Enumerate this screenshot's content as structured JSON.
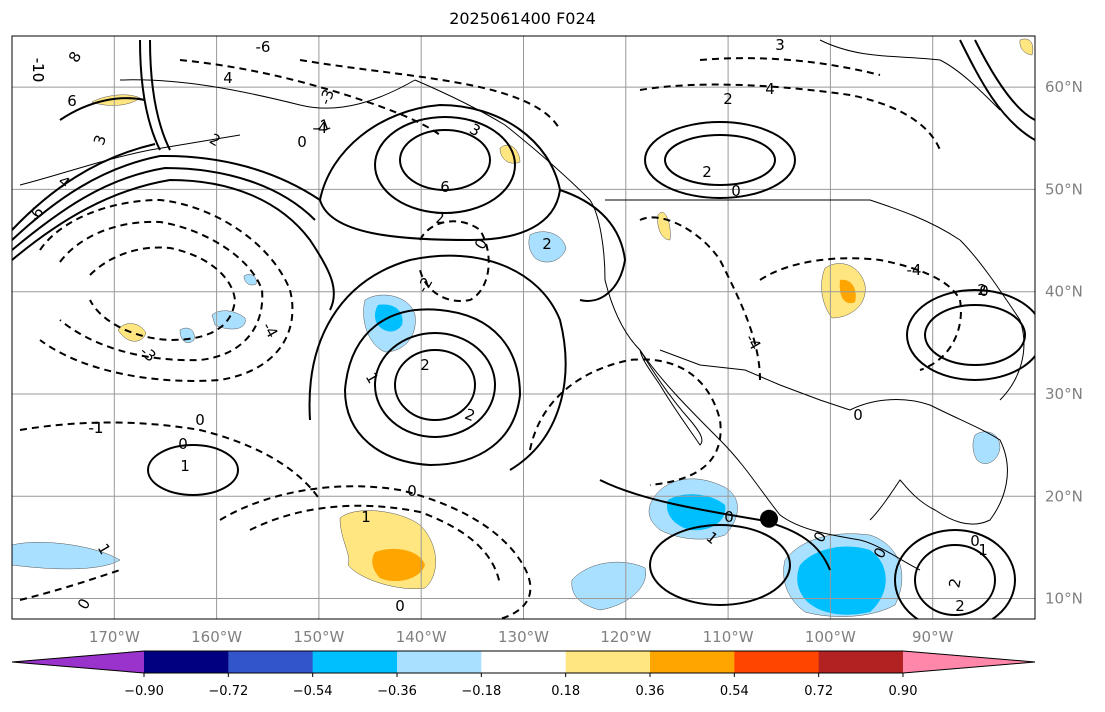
{
  "title": "2025061400 F024",
  "map": {
    "lon_range": [
      -180,
      -80
    ],
    "lat_range": [
      8,
      65
    ],
    "grid": true,
    "lat_ticks": [
      {
        "value": 60,
        "label": "60°N"
      },
      {
        "value": 50,
        "label": "50°N"
      },
      {
        "value": 40,
        "label": "40°N"
      },
      {
        "value": 30,
        "label": "30°N"
      },
      {
        "value": 20,
        "label": "20°N"
      },
      {
        "value": 10,
        "label": "10°N"
      }
    ],
    "lon_ticks": [
      {
        "value": -170,
        "label": "170°W"
      },
      {
        "value": -160,
        "label": "160°W"
      },
      {
        "value": -150,
        "label": "150°W"
      },
      {
        "value": -140,
        "label": "140°W"
      },
      {
        "value": -130,
        "label": "130°W"
      },
      {
        "value": -120,
        "label": "120°W"
      },
      {
        "value": -110,
        "label": "110°W"
      },
      {
        "value": -100,
        "label": "100°W"
      },
      {
        "value": -90,
        "label": "90°W"
      }
    ],
    "marker": {
      "lon": -106,
      "lat": 17.8,
      "color": "#000000"
    },
    "contour_labels": [
      "-10",
      "8",
      "6",
      "4",
      "3",
      "2",
      "1",
      "0",
      "-1",
      "-2",
      "-3",
      "-4",
      "-6"
    ]
  },
  "colorbar": {
    "colors": [
      "#9933cc",
      "#000080",
      "#3355cc",
      "#00bfff",
      "#aae0ff",
      "#ffffff",
      "#ffe680",
      "#ffa500",
      "#ff4500",
      "#b22222",
      "#ff88aa"
    ],
    "labels": [
      "−0.90",
      "−0.72",
      "−0.54",
      "−0.36",
      "−0.18",
      "0.18",
      "0.36",
      "0.54",
      "0.72",
      "0.90"
    ]
  }
}
